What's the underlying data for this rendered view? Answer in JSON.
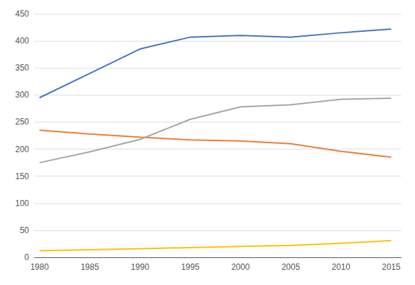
{
  "chart_data": {
    "type": "line",
    "x": [
      1980,
      1985,
      1990,
      1995,
      2000,
      2005,
      2010,
      2015
    ],
    "series": [
      {
        "color": "#4472C4",
        "values": [
          295,
          340,
          385,
          407,
          410,
          407,
          415,
          422
        ]
      },
      {
        "color": "#ED7D31",
        "values": [
          235,
          228,
          222,
          217,
          215,
          210,
          196,
          185
        ]
      },
      {
        "color": "#A5A5A5",
        "values": [
          175,
          195,
          218,
          255,
          278,
          282,
          292,
          294
        ]
      },
      {
        "color": "#FFC000",
        "values": [
          12,
          14,
          16,
          18,
          20,
          22,
          26,
          31
        ]
      }
    ],
    "xlim": [
      1979.5,
      2016
    ],
    "xticks": [
      1980,
      1985,
      1990,
      1995,
      2000,
      2005,
      2010,
      2015
    ],
    "ylim": [
      0,
      450
    ],
    "yticks": [
      0,
      50,
      100,
      150,
      200,
      250,
      300,
      350,
      400,
      450
    ],
    "grid": true
  }
}
